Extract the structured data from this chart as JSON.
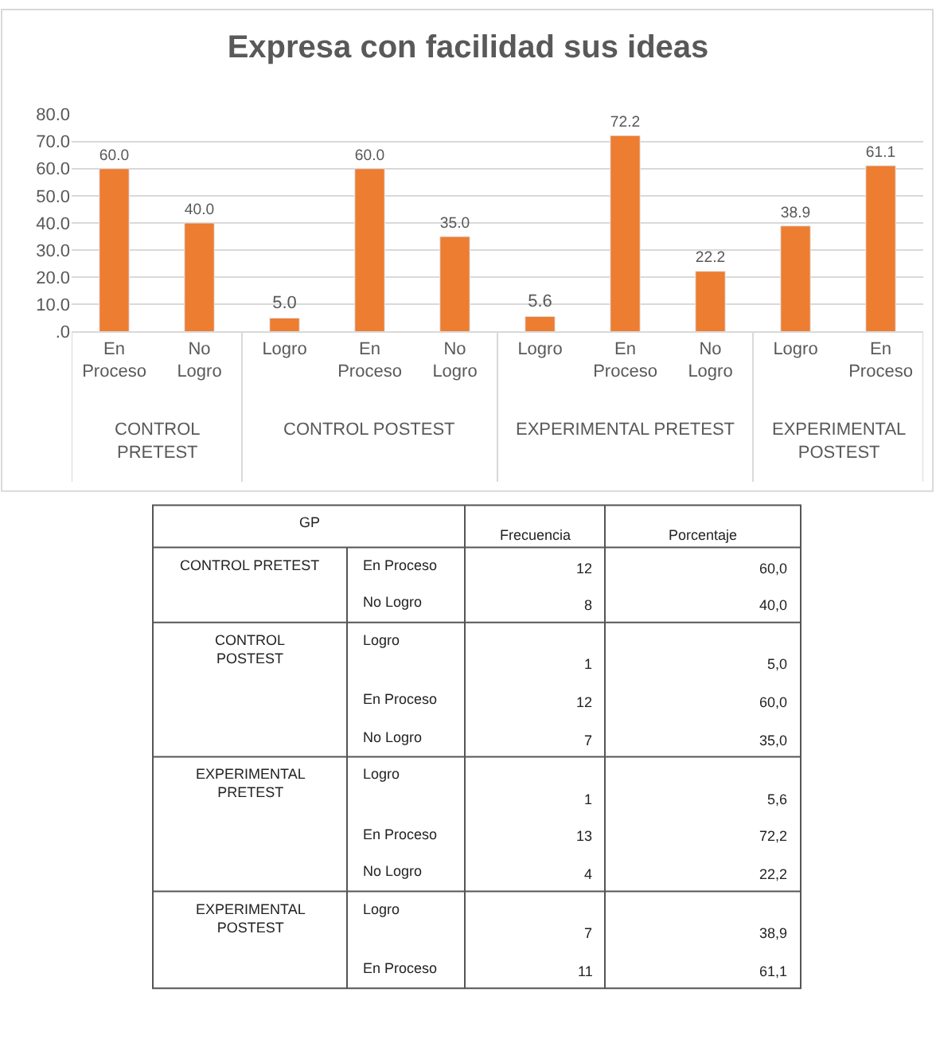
{
  "chart_data": [
    {
      "type": "bar",
      "title": "Expresa con facilidad sus ideas",
      "categories": [
        "En Proceso",
        "No Logro",
        "Logro",
        "En Proceso",
        "No Logro",
        "Logro",
        "En Proceso",
        "No Logro",
        "Logro",
        "En Proceso"
      ],
      "values": [
        60.0,
        40.0,
        5.0,
        60.0,
        35.0,
        5.6,
        72.2,
        22.2,
        38.9,
        61.1
      ],
      "value_labels": [
        "60.0",
        "40.0",
        "5.0",
        "60.0",
        "35.0",
        "5.6",
        "72.2",
        "22.2",
        "38.9",
        "61.1"
      ],
      "color": "#ed7d31",
      "ylim": [
        0,
        80
      ],
      "yticks": [
        {
          "value": 0,
          "label": ".0"
        },
        {
          "value": 10,
          "label": "10.0"
        },
        {
          "value": 20,
          "label": "20.0"
        },
        {
          "value": 30,
          "label": "30.0"
        },
        {
          "value": 40,
          "label": "40.0"
        },
        {
          "value": 50,
          "label": "50.0"
        },
        {
          "value": 60,
          "label": "60.0"
        },
        {
          "value": 70,
          "label": "70.0"
        },
        {
          "value": 80,
          "label": "80.0"
        }
      ],
      "grid": "y",
      "legend": false
    },
    {
      "type": "other",
      "categories": [
        "GP",
        "Frecuencia",
        "Porcentaje"
      ],
      "y_categories": [
        "CONTROL PRETEST",
        null,
        "CONTROL POSTEST",
        null,
        null,
        "EXPERIMENTAL PRETEST",
        null,
        null,
        "EXPERIMENTAL POSTEST",
        null
      ],
      "y2_categories": [
        "En Proceso",
        "No Logro",
        "Logro",
        "En Proceso",
        "No Logro",
        "Logro",
        "En Proceso",
        "No Logro",
        "Logro",
        "En Proceso"
      ],
      "cell_labels": [
        [
          "12",
          "60,0"
        ],
        [
          "8",
          "40,0"
        ],
        [
          "1",
          "5,0"
        ],
        [
          "12",
          "60,0"
        ],
        [
          "7",
          "35,0"
        ],
        [
          "1",
          "5,6"
        ],
        [
          "13",
          "72,2"
        ],
        [
          "4",
          "22,2"
        ],
        [
          "7",
          "38,9"
        ],
        [
          "11",
          "61,1"
        ]
      ]
    }
  ]
}
